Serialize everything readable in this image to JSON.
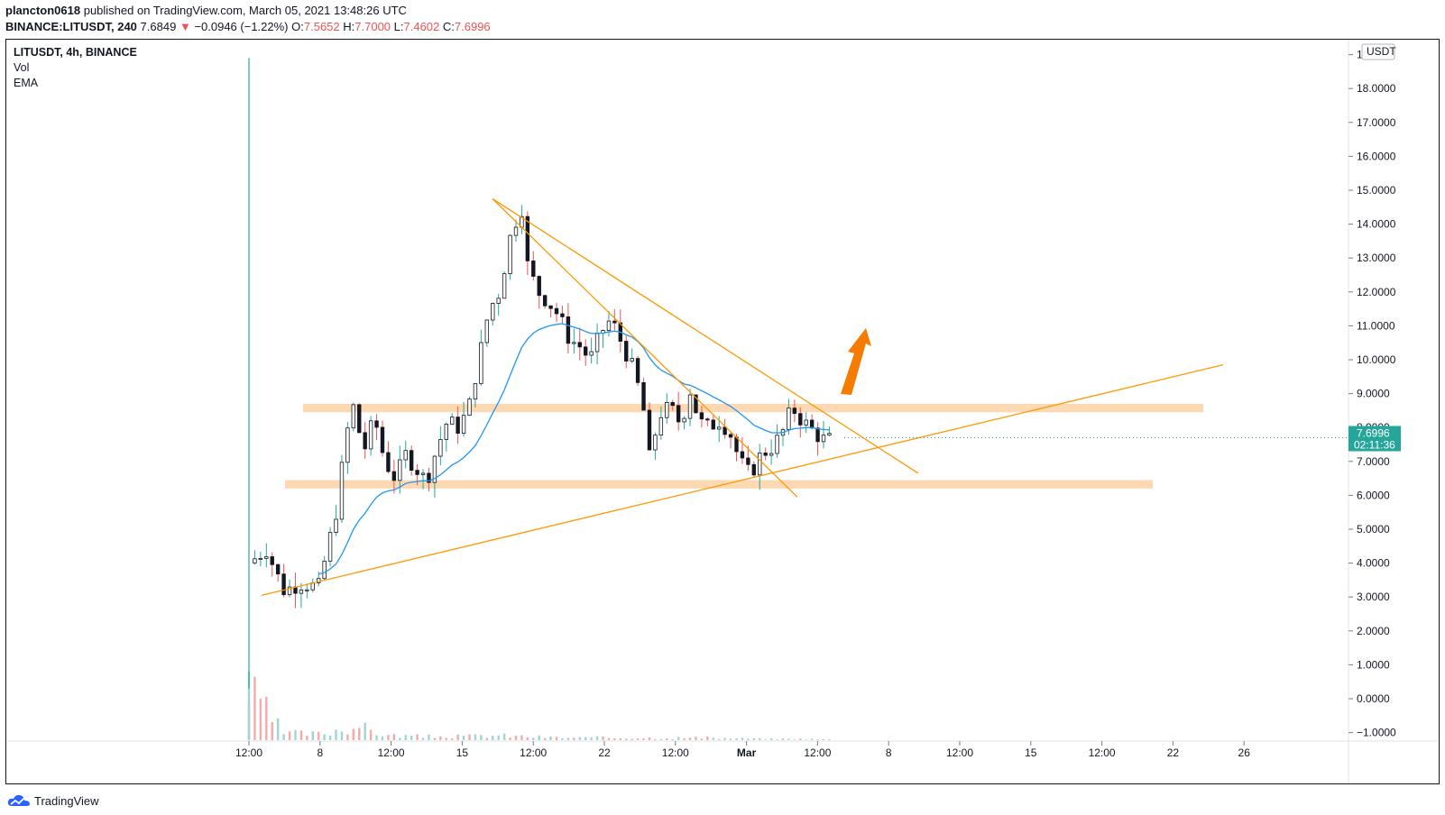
{
  "header": {
    "author": "plancton0618",
    "published_text": "published on TradingView.com, March 05, 2021 13:48:26 UTC",
    "symbol": "BINANCE:LITUSDT, 240",
    "last": "7.6849",
    "change_arrow": "▼",
    "change": "−0.0946 (−1.22%)",
    "o_label": "O:",
    "o_val": "7.5652",
    "h_label": "H:",
    "h_val": "7.7000",
    "l_label": "L:",
    "l_val": "7.4602",
    "c_label": "C:",
    "c_val": "7.6996"
  },
  "legend": {
    "title": "LITUSDT, 4h, BINANCE",
    "vol": "Vol",
    "ema": "EMA"
  },
  "footer": {
    "brand": "TradingView"
  },
  "colors": {
    "up": "#26a69a",
    "down": "#ef5350",
    "ema": "#2196f3",
    "trend": "#ff9800",
    "zone": "#fbd2a6",
    "arrow": "#f57c00"
  },
  "chart_data": {
    "type": "candlestick",
    "currency": "USDT",
    "price_ticks": [
      "1",
      "18.0000",
      "17.0000",
      "16.0000",
      "15.0000",
      "14.0000",
      "13.0000",
      "12.0000",
      "11.0000",
      "10.0000",
      "9.0000",
      "8.0000",
      "7.0000",
      "6.0000",
      "5.0000",
      "4.0000",
      "3.0000",
      "2.0000",
      "1.0000",
      "0.0000",
      "−1.0000"
    ],
    "tick_values": [
      19,
      18,
      17,
      16,
      15,
      14,
      13,
      12,
      11,
      10,
      9,
      8,
      7,
      6,
      5,
      4,
      3,
      2,
      1,
      0,
      -1
    ],
    "time_labels": [
      "12:00",
      "8",
      "12:00",
      "15",
      "12:00",
      "22",
      "12:00",
      "Mar",
      "12:00",
      "8",
      "12:00",
      "15",
      "12:00",
      "22",
      "26"
    ],
    "last_price": "7.6996",
    "countdown": "02:11:36",
    "ylim": [
      -1.2,
      19.5
    ],
    "price_path": [
      [
        0,
        4.0
      ],
      [
        0.5,
        4.4
      ],
      [
        1.0,
        3.2
      ],
      [
        1.5,
        3.4
      ],
      [
        2.0,
        3.3
      ],
      [
        2.5,
        5.5
      ],
      [
        2.8,
        7.8
      ],
      [
        3.0,
        8.6
      ],
      [
        3.3,
        7.3
      ],
      [
        3.6,
        8.3
      ],
      [
        3.9,
        7.0
      ],
      [
        4.2,
        6.5
      ],
      [
        4.5,
        7.2
      ],
      [
        4.8,
        6.8
      ],
      [
        5.1,
        6.4
      ],
      [
        5.4,
        7.4
      ],
      [
        5.7,
        8.2
      ],
      [
        6.0,
        8.0
      ],
      [
        6.3,
        8.5
      ],
      [
        6.6,
        10.0
      ],
      [
        6.9,
        11.5
      ],
      [
        7.2,
        12.0
      ],
      [
        7.5,
        13.6
      ],
      [
        7.7,
        14.2
      ],
      [
        7.85,
        14.5
      ],
      [
        8.0,
        12.8
      ],
      [
        8.3,
        12.0
      ],
      [
        8.6,
        11.7
      ],
      [
        8.9,
        11.3
      ],
      [
        9.2,
        10.6
      ],
      [
        9.5,
        10.4
      ],
      [
        9.8,
        10.0
      ],
      [
        10.1,
        10.8
      ],
      [
        10.4,
        11.2
      ],
      [
        10.7,
        10.5
      ],
      [
        11.0,
        9.8
      ],
      [
        11.3,
        8.8
      ],
      [
        11.5,
        7.1
      ],
      [
        11.8,
        8.4
      ],
      [
        12.1,
        8.6
      ],
      [
        12.4,
        8.1
      ],
      [
        12.7,
        9.2
      ],
      [
        12.9,
        8.2
      ],
      [
        13.2,
        8.0
      ],
      [
        13.5,
        8.2
      ],
      [
        13.8,
        7.9
      ],
      [
        14.1,
        7.0
      ],
      [
        14.4,
        6.6
      ],
      [
        14.7,
        7.2
      ],
      [
        15.0,
        7.4
      ],
      [
        15.3,
        7.8
      ],
      [
        15.6,
        8.6
      ],
      [
        15.8,
        8.3
      ],
      [
        16.1,
        8.0
      ],
      [
        16.4,
        7.7
      ],
      [
        16.6,
        7.6
      ],
      [
        16.75,
        7.7
      ]
    ],
    "volume_path": [
      [
        0,
        4.0
      ],
      [
        1.0,
        0.6
      ],
      [
        2.0,
        0.5
      ],
      [
        3.0,
        1.2
      ],
      [
        4.0,
        0.4
      ],
      [
        5.0,
        0.3
      ],
      [
        6.0,
        0.3
      ],
      [
        7.0,
        0.4
      ],
      [
        8.0,
        0.3
      ],
      [
        9.0,
        0.2
      ],
      [
        10.0,
        0.2
      ],
      [
        11.0,
        0.2
      ],
      [
        12.0,
        0.2
      ],
      [
        13.0,
        0.2
      ],
      [
        14.0,
        0.15
      ],
      [
        15.0,
        0.1
      ],
      [
        16.0,
        0.1
      ],
      [
        16.75,
        0.05
      ]
    ]
  }
}
